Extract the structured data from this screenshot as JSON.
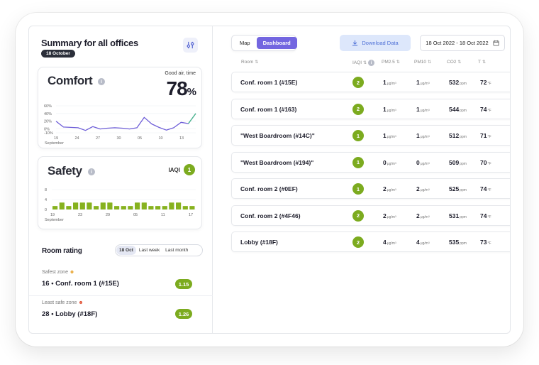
{
  "summary": {
    "title": "Summary for all offices",
    "date_pill": "18 October",
    "filter_icon": "sliders-icon"
  },
  "comfort": {
    "title": "Comfort",
    "caption": "Good air, time",
    "value": "78",
    "unit": "%",
    "chart_data": {
      "type": "line",
      "color": "#6f5fd8",
      "end_color": "#4bbd8a",
      "y_ticks": [
        "60%",
        "40%",
        "20%",
        "0%",
        "-10%"
      ],
      "ylim": [
        -10,
        60
      ],
      "x_ticks": [
        "19",
        "24",
        "27",
        "30",
        "05",
        "10",
        "13"
      ],
      "x_sublabel": "September",
      "values": [
        20,
        5,
        4,
        3,
        -4,
        6,
        0,
        2,
        3,
        2,
        0,
        3,
        30,
        13,
        4,
        -3,
        3,
        17,
        14,
        40
      ]
    }
  },
  "safety": {
    "title": "Safety",
    "iaqi_label": "IAQI",
    "iaqi_value": "1",
    "chart_data": {
      "type": "bar",
      "color": "#87b21f",
      "y_ticks": [
        "8",
        "4",
        "0"
      ],
      "ylim": [
        0,
        8
      ],
      "x_ticks": [
        "19",
        "23",
        "29",
        "05",
        "11",
        "17"
      ],
      "x_sublabel": "September",
      "values": [
        1,
        2,
        1,
        2,
        2,
        2,
        1,
        2,
        2,
        1,
        1,
        1,
        2,
        2,
        1,
        1,
        1,
        2,
        2,
        1,
        1
      ]
    }
  },
  "rating": {
    "title": "Room rating",
    "tabs": [
      "18 Oct",
      "Last week",
      "Last month"
    ],
    "active_tab": 0,
    "safest_label": "Safest zone",
    "safest_name": "16 • Conf. room 1 (#15E)",
    "safest_score": "1.15",
    "least_label": "Least safe zone",
    "least_name": "28 • Lobby (#18F)",
    "least_score": "1.26"
  },
  "toolbar": {
    "map_label": "Map",
    "dashboard_label": "Dashboard",
    "download_label": "Download Data",
    "date_range": "18 Oct 2022 - 18 Oct 2022"
  },
  "table": {
    "headers": [
      "Room",
      "IAQI",
      "PM2.5",
      "PM10",
      "CO2",
      "T"
    ],
    "units": {
      "pm": "μg/m³",
      "co2": "ppm",
      "t": "°F"
    },
    "rows": [
      {
        "room": "Conf. room 1 (#15E)",
        "iaqi": "2",
        "pm25": "1",
        "pm10": "1",
        "co2": "532",
        "t": "72"
      },
      {
        "room": "Conf. room 1 (#163)",
        "iaqi": "2",
        "pm25": "1",
        "pm10": "1",
        "co2": "544",
        "t": "74"
      },
      {
        "room": "\"West Boardroom (#14C)\"",
        "iaqi": "1",
        "pm25": "1",
        "pm10": "1",
        "co2": "512",
        "t": "71"
      },
      {
        "room": "\"West Boardroom (#194)\"",
        "iaqi": "1",
        "pm25": "0",
        "pm10": "0",
        "co2": "509",
        "t": "70"
      },
      {
        "room": "Conf. room 2 (#0EF)",
        "iaqi": "1",
        "pm25": "2",
        "pm10": "2",
        "co2": "525",
        "t": "74"
      },
      {
        "room": "Conf. room 2 (#4F46)",
        "iaqi": "2",
        "pm25": "2",
        "pm10": "2",
        "co2": "531",
        "t": "74"
      },
      {
        "room": "Lobby (#18F)",
        "iaqi": "2",
        "pm25": "4",
        "pm10": "4",
        "co2": "535",
        "t": "73"
      }
    ]
  }
}
